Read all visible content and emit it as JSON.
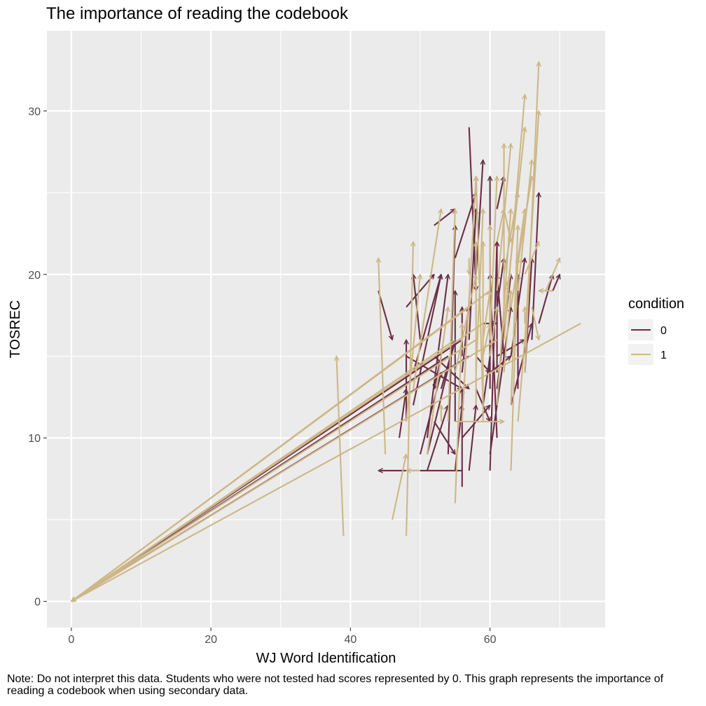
{
  "chart_data": {
    "type": "arrow-segment",
    "title": "The importance of reading the codebook",
    "xlabel": "WJ Word Identification",
    "ylabel": "TOSREC",
    "xlim": [
      -3.5,
      76.5
    ],
    "ylim": [
      -1.6,
      34.9
    ],
    "x_ticks": [
      0,
      20,
      40,
      60
    ],
    "y_ticks": [
      0,
      10,
      20,
      30
    ],
    "grid": true,
    "legend": {
      "title": "condition",
      "position": "right",
      "entries": [
        {
          "label": "0",
          "color": "#6b2d45"
        },
        {
          "label": "1",
          "color": "#cdb786"
        }
      ]
    },
    "note": "Note: Do not interpret this data. Students who were not tested had scores represented by 0. This graph represents the importance of reading a codebook when using secondary data.",
    "series": [
      {
        "name": "0",
        "color": "#6b2d45",
        "segments": [
          [
            57,
            15,
            0,
            0
          ],
          [
            56,
            16,
            0,
            0
          ],
          [
            54,
            15,
            0,
            0
          ],
          [
            44,
            19,
            46,
            16
          ],
          [
            48,
            18,
            52,
            20
          ],
          [
            52,
            23,
            55,
            24
          ],
          [
            55,
            21,
            58,
            25
          ],
          [
            49,
            12,
            53,
            20
          ],
          [
            50,
            16,
            49,
            20
          ],
          [
            54,
            9,
            55,
            23
          ],
          [
            51,
            9,
            55,
            16
          ],
          [
            55,
            11,
            55,
            19
          ],
          [
            49,
            14,
            53,
            20
          ],
          [
            53,
            15,
            52,
            13
          ],
          [
            51,
            10,
            54,
            20
          ],
          [
            53,
            13,
            55,
            16
          ],
          [
            52,
            11,
            55,
            9
          ],
          [
            51,
            8,
            54,
            12
          ],
          [
            50,
            9,
            53,
            14
          ],
          [
            56,
            14,
            57,
            18
          ],
          [
            57,
            29,
            58,
            19
          ],
          [
            58,
            20,
            59,
            27
          ],
          [
            60,
            13,
            60,
            26
          ],
          [
            61,
            14,
            61,
            22
          ],
          [
            61,
            24,
            62,
            26
          ],
          [
            61,
            10,
            60,
            20
          ],
          [
            62,
            15,
            61,
            20
          ],
          [
            60,
            8,
            61,
            22
          ],
          [
            60,
            14,
            63,
            15
          ],
          [
            59,
            12,
            62,
            21
          ],
          [
            59,
            17,
            61,
            17
          ],
          [
            57,
            8,
            58,
            12
          ],
          [
            57,
            16,
            58,
            24
          ],
          [
            61,
            13,
            63,
            20
          ],
          [
            63,
            15,
            65,
            21
          ],
          [
            64,
            13,
            64,
            20
          ],
          [
            65,
            14,
            66,
            21
          ],
          [
            67,
            17,
            69,
            20
          ],
          [
            66,
            16,
            67,
            25
          ],
          [
            63,
            12,
            66,
            17
          ],
          [
            61,
            15,
            65,
            16
          ],
          [
            56,
            10,
            60,
            12
          ],
          [
            58,
            15,
            60,
            14
          ],
          [
            60,
            9,
            63,
            18
          ],
          [
            56,
            7,
            56,
            13
          ],
          [
            47,
            10,
            48,
            13
          ],
          [
            58,
            13,
            60,
            11
          ],
          [
            56,
            15,
            56,
            18
          ],
          [
            48,
            11,
            48,
            16
          ],
          [
            55,
            8,
            56,
            12
          ],
          [
            56,
            8,
            44,
            8
          ],
          [
            48,
            15,
            56,
            13
          ],
          [
            52,
            15,
            57,
            13
          ],
          [
            69,
            19,
            70,
            20
          ]
        ]
      },
      {
        "name": "1",
        "color": "#cdb786",
        "segments": [
          [
            73,
            17,
            0,
            0
          ],
          [
            58,
            16,
            0,
            0
          ],
          [
            59,
            17,
            0,
            0
          ],
          [
            60,
            19,
            0,
            0
          ],
          [
            57,
            18,
            0,
            0
          ],
          [
            55,
            16,
            0,
            0
          ],
          [
            61,
            16,
            0,
            0
          ],
          [
            39,
            4,
            38,
            15
          ],
          [
            45,
            9,
            44,
            21
          ],
          [
            46,
            5,
            48,
            9
          ],
          [
            48,
            4,
            49,
            22
          ],
          [
            48,
            11,
            50,
            20
          ],
          [
            50,
            8,
            48,
            8
          ],
          [
            49,
            13,
            53,
            24
          ],
          [
            53,
            11,
            53,
            12
          ],
          [
            51,
            9,
            54,
            18
          ],
          [
            54,
            11,
            55,
            24
          ],
          [
            55,
            6,
            56,
            17
          ],
          [
            56,
            11,
            58,
            26
          ],
          [
            55,
            14,
            58,
            20
          ],
          [
            55,
            11,
            62,
            11
          ],
          [
            57,
            21,
            57,
            20
          ],
          [
            58,
            12,
            58,
            22
          ],
          [
            59,
            12,
            58,
            26
          ],
          [
            59,
            15,
            60,
            17
          ],
          [
            60,
            16,
            61,
            26
          ],
          [
            60,
            17,
            60,
            23
          ],
          [
            61,
            12,
            63,
            24
          ],
          [
            62,
            18,
            62,
            28
          ],
          [
            61,
            19,
            63,
            28
          ],
          [
            62,
            20,
            64,
            25
          ],
          [
            62,
            16,
            65,
            31
          ],
          [
            62,
            17,
            65,
            29
          ],
          [
            63,
            8,
            64,
            21
          ],
          [
            63,
            12,
            64,
            23
          ],
          [
            64,
            11,
            65,
            16
          ],
          [
            63,
            18,
            66,
            26
          ],
          [
            64,
            19,
            66,
            27
          ],
          [
            65,
            14,
            67,
            33
          ],
          [
            65,
            16,
            67,
            30
          ],
          [
            65,
            17,
            65,
            18
          ],
          [
            66,
            18,
            67,
            16
          ],
          [
            63,
            20,
            62,
            19
          ],
          [
            68,
            19,
            70,
            21
          ],
          [
            65,
            20,
            67,
            22
          ],
          [
            69,
            19,
            67,
            19
          ],
          [
            59,
            11,
            59,
            22
          ],
          [
            58,
            14,
            59,
            24
          ],
          [
            60,
            15,
            61,
            18
          ],
          [
            62,
            14,
            63,
            19
          ],
          [
            59,
            16,
            60,
            19
          ],
          [
            61,
            22,
            62,
            24
          ],
          [
            64,
            21,
            65,
            24
          ],
          [
            62,
            24,
            63,
            22
          ]
        ]
      }
    ]
  }
}
